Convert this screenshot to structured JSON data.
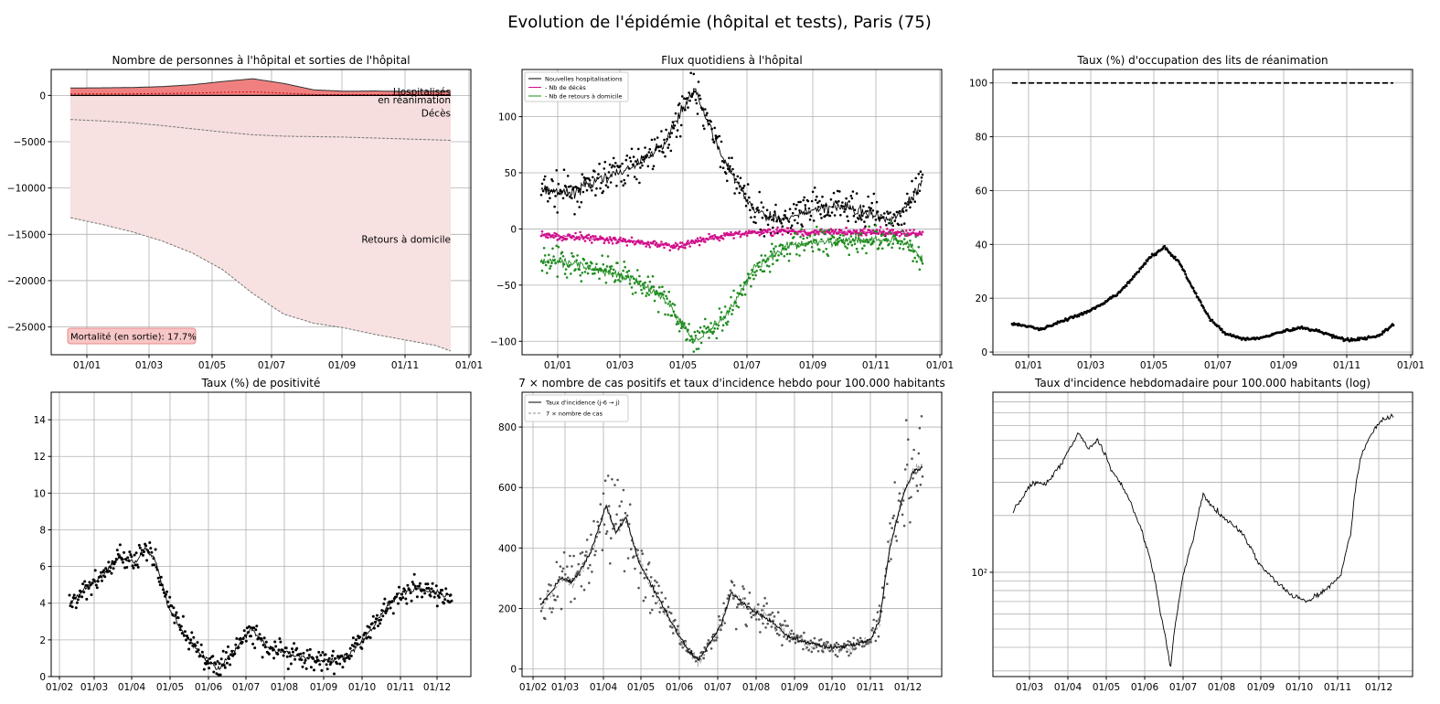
{
  "suptitle": "Evolution de l'épidémie (hôpital et tests), Paris (75)",
  "chart_data": [
    {
      "id": "p1",
      "type": "area",
      "title": "Nombre de personnes à l'hôpital et sorties de l'hôpital",
      "x_ticks": [
        "01/01",
        "01/03",
        "01/05",
        "01/07",
        "01/09",
        "01/11",
        "01/01"
      ],
      "y_ticks": [
        "0",
        "−5000",
        "−10000",
        "−15000",
        "−20000",
        "−25000"
      ],
      "y_tick_values": [
        0,
        -5000,
        -10000,
        -15000,
        -20000,
        -25000
      ],
      "ylim": [
        -28000,
        2800
      ],
      "x_months_since_start": [
        0,
        1,
        2,
        3,
        4,
        5,
        6,
        7,
        8,
        9,
        10,
        11,
        12,
        12.5
      ],
      "hospitalises": [
        800,
        820,
        850,
        950,
        1150,
        1500,
        1800,
        1300,
        600,
        450,
        480,
        420,
        460,
        450
      ],
      "en_reanimation": [
        150,
        160,
        170,
        200,
        250,
        330,
        380,
        250,
        90,
        80,
        90,
        80,
        90,
        90
      ],
      "deces": [
        -2600,
        -2750,
        -2950,
        -3250,
        -3600,
        -3950,
        -4250,
        -4400,
        -4450,
        -4500,
        -4600,
        -4700,
        -4800,
        -4850
      ],
      "retours_domicile": [
        -13200,
        -13900,
        -14700,
        -15700,
        -17000,
        -18800,
        -21400,
        -23600,
        -24600,
        -25100,
        -25800,
        -26400,
        -27000,
        -27600
      ],
      "labels": {
        "hospitalises": "Hospitalisés",
        "reanimation": "en réanimation",
        "deces": "Décès",
        "retours": "Retours à domicile"
      },
      "annotation": "Mortalité (en sortie): 17.7%"
    },
    {
      "id": "p2",
      "type": "line",
      "title": "Flux quotidiens à l'hôpital",
      "x_ticks": [
        "01/01",
        "01/03",
        "01/05",
        "01/07",
        "01/09",
        "01/11",
        "01/01"
      ],
      "y_ticks": [
        "100",
        "50",
        "0",
        "−50",
        "−100"
      ],
      "y_tick_values": [
        100,
        50,
        0,
        -50,
        -100
      ],
      "ylim": [
        -112,
        142
      ],
      "legend": [
        "Nouvelles hospitalisations",
        "- Nb de décès",
        "- Nb de retours à domicile"
      ],
      "x_months_since_start": [
        0,
        1,
        2,
        3,
        4,
        4.5,
        5,
        6,
        7,
        8,
        9,
        10,
        11,
        11.5,
        12,
        12.5
      ],
      "hospitalisations": [
        35,
        32,
        45,
        55,
        75,
        100,
        125,
        60,
        15,
        8,
        18,
        20,
        12,
        8,
        20,
        42
      ],
      "deces": [
        -5,
        -7,
        -9,
        -11,
        -14,
        -16,
        -12,
        -6,
        -3,
        -2,
        -3,
        -3,
        -3,
        -3,
        -4,
        -4
      ],
      "retours": [
        -28,
        -30,
        -38,
        -45,
        -60,
        -80,
        -100,
        -80,
        -35,
        -15,
        -12,
        -10,
        -10,
        -9,
        -12,
        -28
      ]
    },
    {
      "id": "p3",
      "type": "line",
      "title": "Taux (%) d'occupation des lits de réanimation",
      "x_ticks": [
        "01/01",
        "01/03",
        "01/05",
        "01/07",
        "01/09",
        "01/11",
        "01/01"
      ],
      "y_ticks": [
        "100",
        "80",
        "60",
        "40",
        "20",
        "0"
      ],
      "y_tick_values": [
        100,
        80,
        60,
        40,
        20,
        0
      ],
      "ylim": [
        -1,
        105
      ],
      "reference_line": 100,
      "x_months_since_start": [
        0,
        0.5,
        1,
        1.5,
        2,
        2.5,
        3,
        3.5,
        4,
        4.5,
        5,
        5.5,
        6,
        6.5,
        7,
        7.5,
        8,
        8.5,
        9,
        9.5,
        10,
        10.5,
        11,
        11.5,
        12,
        12.5
      ],
      "occupation": [
        10.5,
        9.5,
        8.5,
        11,
        13,
        15,
        18,
        22,
        28,
        35,
        39,
        33,
        22,
        12,
        7,
        5,
        5,
        6.5,
        8,
        9,
        8,
        6,
        4.5,
        5,
        6,
        10
      ]
    },
    {
      "id": "p4",
      "type": "scatter",
      "title": "Taux (%) de positivité",
      "x_ticks": [
        "01/02",
        "01/03",
        "01/04",
        "01/05",
        "01/06",
        "01/07",
        "01/08",
        "01/09",
        "01/10",
        "01/11",
        "01/12"
      ],
      "y_ticks": [
        "14",
        "12",
        "10",
        "8",
        "6",
        "4",
        "2",
        "0"
      ],
      "y_tick_values": [
        14,
        12,
        10,
        8,
        6,
        4,
        2,
        0
      ],
      "ylim": [
        0,
        15.5
      ],
      "x_months_since_feb": [
        0,
        0.5,
        1,
        1.5,
        2,
        2.3,
        2.6,
        3,
        3.5,
        4,
        4.5,
        5,
        5.5,
        6,
        6.5,
        7,
        7.5,
        8,
        8.5,
        9,
        9.5,
        10,
        10.5,
        11,
        11.3,
        11.6
      ],
      "positivite": [
        4,
        4.8,
        5.5,
        6.5,
        6.2,
        7,
        6.4,
        3.8,
        2.3,
        1.2,
        0.4,
        1.4,
        2.6,
        1.6,
        1.3,
        1.1,
        0.9,
        0.9,
        1.2,
        2.2,
        3.5,
        4.5,
        4.8,
        4.6,
        4.5,
        4.4
      ]
    },
    {
      "id": "p5",
      "type": "line",
      "title": "7 × nombre de cas positifs et taux d'incidence hebdo pour 100.000 habitants",
      "x_ticks": [
        "01/02",
        "01/03",
        "01/04",
        "01/05",
        "01/06",
        "01/07",
        "01/08",
        "01/09",
        "01/10",
        "01/11",
        "01/12"
      ],
      "y_ticks": [
        "800",
        "600",
        "400",
        "200",
        "0"
      ],
      "y_tick_values": [
        800,
        600,
        400,
        200,
        0
      ],
      "ylim": [
        -25,
        915
      ],
      "legend": [
        "Taux d'incidence (j-6 → j)",
        "7 × nombre de cas"
      ],
      "x_months_since_feb": [
        0,
        0.3,
        0.6,
        1,
        1.5,
        2,
        2.3,
        2.6,
        3,
        3.5,
        4,
        4.5,
        4.8,
        5,
        5.5,
        5.8,
        6,
        6.5,
        7,
        7.5,
        8,
        8.5,
        9,
        9.5,
        10,
        10.3,
        10.6,
        11,
        11.3,
        11.6
      ],
      "incidence": [
        210,
        250,
        300,
        290,
        380,
        540,
        450,
        500,
        350,
        250,
        150,
        60,
        30,
        60,
        150,
        255,
        230,
        190,
        160,
        110,
        90,
        75,
        70,
        80,
        95,
        160,
        400,
        570,
        650,
        670
      ]
    },
    {
      "id": "p6",
      "type": "line",
      "title": "Taux d'incidence hebdomadaire pour 100.000 habitants (log)",
      "x_ticks": [
        "01/03",
        "01/04",
        "01/05",
        "01/06",
        "01/07",
        "01/08",
        "01/09",
        "01/10",
        "01/11",
        "01/12"
      ],
      "y_ticks": [
        "10²"
      ],
      "y_tick_values": [
        100
      ],
      "y_scale": "log",
      "ylim": [
        28,
        900
      ],
      "x_months_since_feb": [
        0,
        0.3,
        0.6,
        1,
        1.5,
        2,
        2.3,
        2.6,
        3,
        3.5,
        4,
        4.5,
        4.8,
        5,
        5.5,
        5.8,
        6,
        6.5,
        7,
        7.5,
        8,
        8.5,
        9,
        9.5,
        10,
        10.3,
        10.6,
        11,
        11.3,
        11.6
      ],
      "incidence": [
        210,
        250,
        300,
        290,
        380,
        540,
        450,
        500,
        350,
        250,
        150,
        60,
        30,
        60,
        150,
        255,
        230,
        190,
        160,
        110,
        90,
        75,
        70,
        80,
        95,
        160,
        400,
        570,
        650,
        670
      ]
    }
  ]
}
